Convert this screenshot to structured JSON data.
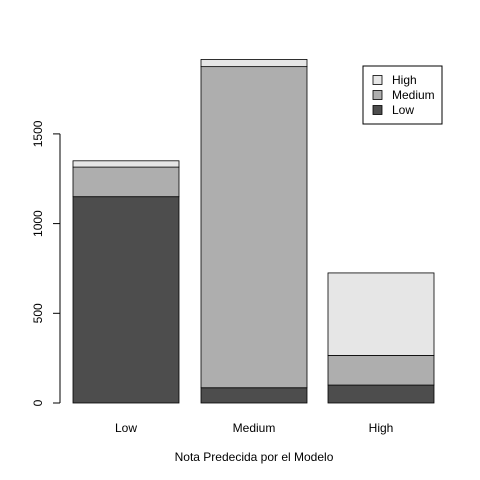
{
  "chart_data": {
    "type": "bar",
    "stacked": true,
    "title": "",
    "xlabel": "Nota Predecida por el Modelo",
    "ylabel": "",
    "categories": [
      "Low",
      "Medium",
      "High"
    ],
    "series": [
      {
        "name": "Low",
        "values": [
          1150,
          85,
          100
        ],
        "color": "#4d4d4d"
      },
      {
        "name": "Medium",
        "values": [
          165,
          1790,
          165
        ],
        "color": "#aeaeae"
      },
      {
        "name": "High",
        "values": [
          35,
          40,
          460
        ],
        "color": "#e6e6e6"
      }
    ],
    "y_ticks": [
      0,
      500,
      1000,
      1500
    ],
    "ylim": [
      0,
      1925
    ],
    "legend": {
      "position": "top-right",
      "order": [
        "High",
        "Medium",
        "Low"
      ]
    },
    "grid": false
  }
}
